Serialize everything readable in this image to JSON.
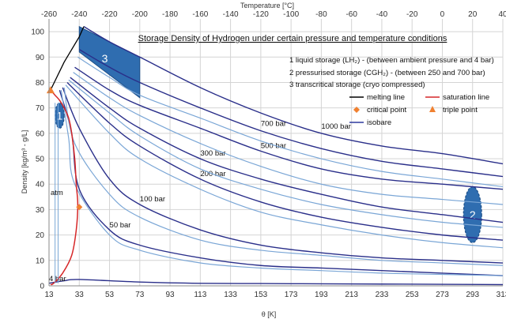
{
  "chart_data": {
    "type": "line",
    "title": "Storage Density of Hydrogen under certain pressure and temperature conditions",
    "xlabel": "θ [K]",
    "ylabel": "Density [kg/m³ - g/L]",
    "x2label": "Temperature [°C]",
    "xlim": [
      13,
      313
    ],
    "ylim": [
      0,
      105
    ],
    "x_ticks": [
      "13",
      "33",
      "53",
      "73",
      "93",
      "113",
      "133",
      "153",
      "173",
      "193",
      "213",
      "233",
      "253",
      "273",
      "293",
      "313"
    ],
    "x2_ticks": [
      "-260",
      "-240",
      "-220",
      "-200",
      "-180",
      "-160",
      "-140",
      "-120",
      "-100",
      "-80",
      "-60",
      "-40",
      "-20",
      "0",
      "20",
      "40"
    ],
    "y_ticks": [
      "0",
      "10",
      "20",
      "30",
      "40",
      "50",
      "60",
      "70",
      "80",
      "90",
      "100"
    ],
    "grid": true,
    "legend_lines": [
      "1 liquid storage (LH₂) - (between ambient pressure and 4 bar)",
      "2 pressurised storage (CGH₂) - (between 250 and 700 bar)",
      "3 transcritical storage (cryo compressed)"
    ],
    "legend": [
      {
        "label": "melting line",
        "color": "#000000",
        "kind": "line"
      },
      {
        "label": "saturation line",
        "color": "#d62728",
        "kind": "line"
      },
      {
        "label": "critical point",
        "color": "#f08030",
        "kind": "diamond"
      },
      {
        "label": "triple point",
        "color": "#f08030",
        "kind": "triangle"
      },
      {
        "label": "isobare",
        "color": "#2e3a9e",
        "kind": "line"
      }
    ],
    "series": [
      {
        "name": "1000 bar",
        "color": "#2a2f8a",
        "x": [
          36,
          53,
          73,
          113,
          153,
          193,
          233,
          273,
          313
        ],
        "y": [
          102,
          96,
          90,
          78,
          68,
          60,
          55,
          52,
          48
        ]
      },
      {
        "name": "700 bar",
        "color": "#2a2f8a",
        "x": [
          33,
          53,
          73,
          113,
          153,
          193,
          233,
          273,
          313
        ],
        "y": [
          93,
          86,
          80,
          70,
          61,
          54,
          49,
          46,
          43
        ]
      },
      {
        "name": "500 bar",
        "color": "#2a2f8a",
        "x": [
          30,
          53,
          73,
          113,
          153,
          193,
          233,
          273,
          313
        ],
        "y": [
          86,
          77,
          71,
          62,
          53,
          46,
          42,
          40,
          38
        ]
      },
      {
        "name": "300 bar",
        "color": "#2a2f8a",
        "x": [
          27,
          53,
          73,
          113,
          153,
          193,
          233,
          273,
          313
        ],
        "y": [
          82,
          70,
          62,
          50,
          42,
          36,
          31,
          28,
          25
        ]
      },
      {
        "name": "200 bar",
        "color": "#2a2f8a",
        "x": [
          25,
          53,
          73,
          113,
          153,
          193,
          233,
          273,
          313
        ],
        "y": [
          80,
          64,
          55,
          42,
          33,
          27,
          23,
          20,
          18
        ]
      },
      {
        "name": "100 bar",
        "color": "#2a2f8a",
        "x": [
          22,
          33,
          53,
          73,
          113,
          153,
          193,
          233,
          273,
          313
        ],
        "y": [
          78,
          62,
          42,
          32,
          22,
          16,
          13,
          11,
          10,
          9
        ]
      },
      {
        "name": "50 bar",
        "color": "#2a2f8a",
        "x": [
          20,
          28,
          33,
          53,
          73,
          113,
          153,
          193,
          233,
          273,
          313
        ],
        "y": [
          77,
          60,
          38,
          22,
          16,
          11,
          8,
          7,
          6,
          5,
          4
        ]
      },
      {
        "name": "4 bar",
        "color": "#2a2f8a",
        "x": [
          13,
          23,
          33,
          73,
          113,
          153,
          193,
          233,
          273,
          313
        ],
        "y": [
          1,
          2,
          2.5,
          1.5,
          1,
          0.9,
          0.8,
          0.7,
          0.6,
          0.5
        ]
      },
      {
        "name": "",
        "color": "#7aa6d6",
        "x": [
          32,
          53,
          73,
          113,
          153,
          193,
          233,
          273,
          313
        ],
        "y": [
          90,
          82,
          75,
          66,
          57,
          50,
          45,
          42,
          39
        ]
      },
      {
        "name": "",
        "color": "#7aa6d6",
        "x": [
          29,
          53,
          73,
          113,
          153,
          193,
          233,
          273,
          313
        ],
        "y": [
          84,
          74,
          67,
          56,
          47,
          40,
          36,
          34,
          32
        ]
      },
      {
        "name": "",
        "color": "#7aa6d6",
        "x": [
          26,
          53,
          73,
          113,
          153,
          193,
          233,
          273,
          313
        ],
        "y": [
          81,
          68,
          59,
          46,
          38,
          32,
          28,
          25,
          23
        ]
      },
      {
        "name": "",
        "color": "#7aa6d6",
        "x": [
          24,
          53,
          73,
          113,
          153,
          193,
          233,
          273,
          313
        ],
        "y": [
          79,
          60,
          50,
          38,
          29,
          24,
          20,
          17,
          15
        ]
      },
      {
        "name": "",
        "color": "#7aa6d6",
        "x": [
          23,
          30,
          53,
          73,
          113,
          153,
          193,
          233,
          273,
          313
        ],
        "y": [
          78,
          56,
          36,
          27,
          18,
          14,
          12,
          10,
          9,
          8
        ]
      },
      {
        "name": "",
        "color": "#7aa6d6",
        "x": [
          21,
          26,
          30,
          53,
          73,
          113,
          153,
          193,
          233,
          273,
          313
        ],
        "y": [
          77,
          58,
          40,
          20,
          14,
          9,
          7,
          6,
          5,
          4.5,
          4
        ]
      }
    ],
    "melting_line": {
      "x": [
        14,
        23,
        33,
        36
      ],
      "y": [
        77,
        88,
        98,
        102
      ]
    },
    "saturation_line": {
      "x": [
        14,
        17,
        20,
        23,
        26,
        28,
        30,
        31,
        32,
        31,
        28,
        22,
        16,
        14
      ],
      "y": [
        77,
        75,
        73,
        70,
        66,
        60,
        50,
        40,
        32,
        22,
        12,
        5,
        1,
        0.5
      ]
    },
    "critical_point": {
      "x": 33,
      "y": 31
    },
    "triple_point": {
      "x": 14,
      "y": 77
    },
    "regions": [
      {
        "label": "1",
        "center": [
          20,
          67
        ],
        "radius_x": 3,
        "radius_y": 5
      },
      {
        "label": "2",
        "center": [
          293,
          28
        ],
        "radius_x": 6,
        "radius_y": 11
      },
      {
        "label": "3",
        "polygon": [
          [
            33,
            102
          ],
          [
            73,
            90
          ],
          [
            73,
            74
          ],
          [
            33,
            92
          ]
        ]
      }
    ],
    "annotations": [
      "atm"
    ]
  }
}
